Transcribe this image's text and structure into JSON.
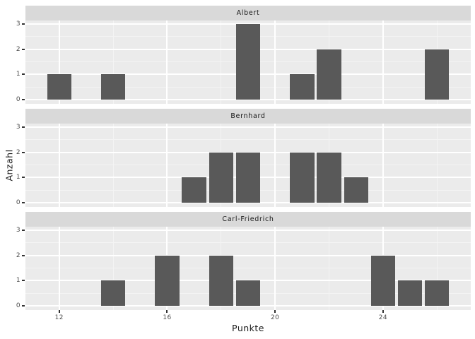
{
  "chart_data": {
    "type": "bar",
    "title": "",
    "xlabel": "Punkte",
    "ylabel": "Anzahl",
    "legend": "none",
    "grid": "on",
    "facet_layout": "rows",
    "x_major_ticks": [
      12,
      16,
      20,
      24
    ],
    "x_minor_ticks": [
      14,
      18,
      22,
      26
    ],
    "y_major_ticks": [
      0,
      1,
      2,
      3
    ],
    "y_minor_ticks": [
      0.5,
      1.5,
      2.5
    ],
    "xlim": [
      10.75,
      27.25
    ],
    "ylim": [
      0,
      3
    ],
    "bar_width": 0.9,
    "facets": [
      {
        "label": "Albert",
        "bars": [
          {
            "x": 12,
            "count": 1
          },
          {
            "x": 14,
            "count": 1
          },
          {
            "x": 19,
            "count": 3
          },
          {
            "x": 21,
            "count": 1
          },
          {
            "x": 22,
            "count": 2
          },
          {
            "x": 26,
            "count": 2
          }
        ]
      },
      {
        "label": "Bernhard",
        "bars": [
          {
            "x": 17,
            "count": 1
          },
          {
            "x": 18,
            "count": 2
          },
          {
            "x": 19,
            "count": 2
          },
          {
            "x": 21,
            "count": 2
          },
          {
            "x": 22,
            "count": 2
          },
          {
            "x": 23,
            "count": 1
          }
        ]
      },
      {
        "label": "Carl-Friedrich",
        "bars": [
          {
            "x": 14,
            "count": 1
          },
          {
            "x": 16,
            "count": 2
          },
          {
            "x": 18,
            "count": 2
          },
          {
            "x": 19,
            "count": 1
          },
          {
            "x": 24,
            "count": 2
          },
          {
            "x": 25,
            "count": 1
          },
          {
            "x": 26,
            "count": 1
          }
        ]
      }
    ],
    "colors": {
      "background": "#FFFFFF",
      "panel_background": "#EBEBEB",
      "strip_background": "#D9D9D9",
      "bar_fill": "#595959",
      "grid_major": "#FFFFFF",
      "grid_minor": "#F4F4F4",
      "tick_label": "#4D4D4D",
      "axis_title": "#1A1A1A",
      "strip_text": "#1A1A1A",
      "tick_mark": "#333333"
    }
  }
}
